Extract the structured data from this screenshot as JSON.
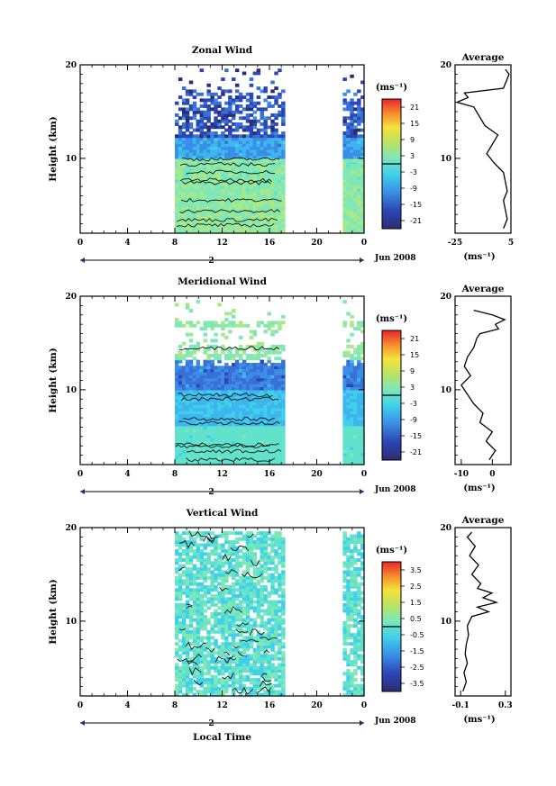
{
  "chart_data": [
    {
      "type": "heatmap",
      "title": "Zonal Wind",
      "ylabel": "Height (km)",
      "xlabel": "",
      "xlim": [
        0,
        24
      ],
      "ylim": [
        2,
        20
      ],
      "xticks": [
        "0",
        "4",
        "8",
        "12",
        "16",
        "20",
        "0"
      ],
      "yticks": [
        "10",
        "20"
      ],
      "date_label": "2",
      "date_suffix": "Jun 2008",
      "colorbar_unit": "(ms⁻¹)",
      "colorbar_ticks": [
        "21",
        "15",
        "9",
        "3",
        "-3",
        "-9",
        "-15",
        "-21"
      ],
      "colorbar_range": [
        -24,
        24
      ],
      "data_spans_hours": [
        [
          8,
          17.2
        ],
        [
          22.2,
          24
        ]
      ],
      "profile": {
        "title": "Average",
        "xlabel": "(ms⁻¹)",
        "xticks": [
          "-25",
          "5"
        ],
        "xlim": [
          -25,
          5
        ],
        "heights": [
          2.5,
          3.5,
          4.5,
          5.5,
          6.5,
          7.5,
          8.5,
          9.5,
          10.5,
          11.5,
          12.5,
          13.5,
          14.5,
          15.5,
          16.0,
          16.5,
          17.0,
          17.5,
          18.0,
          18.5,
          19.0,
          19.5
        ],
        "values": [
          1,
          3,
          2,
          1,
          3,
          2,
          1,
          -4,
          -8,
          -5,
          -2,
          -9,
          -12,
          -15,
          -24,
          -18,
          -20,
          1,
          2,
          3,
          4,
          2
        ]
      }
    },
    {
      "type": "heatmap",
      "title": "Meridional Wind",
      "ylabel": "Height (km)",
      "xlabel": "",
      "xlim": [
        0,
        24
      ],
      "ylim": [
        2,
        20
      ],
      "xticks": [
        "0",
        "4",
        "8",
        "12",
        "16",
        "20",
        "0"
      ],
      "yticks": [
        "10",
        "20"
      ],
      "date_label": "2",
      "date_suffix": "Jun 2008",
      "colorbar_unit": "(ms⁻¹)",
      "colorbar_ticks": [
        "21",
        "15",
        "9",
        "3",
        "-3",
        "-9",
        "-15",
        "-21"
      ],
      "colorbar_range": [
        -24,
        24
      ],
      "data_spans_hours": [
        [
          8,
          17.2
        ],
        [
          22.2,
          24
        ]
      ],
      "profile": {
        "title": "Average",
        "xlabel": "(ms⁻¹)",
        "xticks": [
          "-10",
          "0"
        ],
        "xlim": [
          -12,
          6
        ],
        "heights": [
          2.5,
          3.5,
          4.5,
          5.5,
          6.5,
          7.5,
          8.5,
          9.5,
          10.5,
          11.5,
          12.5,
          13.5,
          14.5,
          15.5,
          16.0,
          16.5,
          17.0,
          17.5,
          18.0,
          18.5
        ],
        "values": [
          -1,
          1,
          -2,
          0,
          -4,
          -3,
          -6,
          -8,
          -10,
          -7,
          -9,
          -8,
          -6,
          -5,
          -4,
          2,
          1,
          4,
          0,
          -6
        ]
      }
    },
    {
      "type": "heatmap",
      "title": "Vertical Wind",
      "ylabel": "Height (km)",
      "xlabel": "Local Time",
      "xlim": [
        0,
        24
      ],
      "ylim": [
        2,
        20
      ],
      "xticks": [
        "0",
        "4",
        "8",
        "12",
        "16",
        "20",
        "0"
      ],
      "yticks": [
        "10",
        "20"
      ],
      "date_label": "2",
      "date_suffix": "Jun 2008",
      "colorbar_unit": "(ms⁻¹)",
      "colorbar_ticks": [
        "3.5",
        "2.5",
        "1.5",
        "0.5",
        "-0.5",
        "-1.5",
        "-2.5",
        "-3.5"
      ],
      "colorbar_range": [
        -4,
        4
      ],
      "data_spans_hours": [
        [
          8,
          17.2
        ],
        [
          22.2,
          24
        ]
      ],
      "profile": {
        "title": "Average",
        "xlabel": "(ms⁻¹)",
        "xticks": [
          "-0.1",
          "0.3"
        ],
        "xlim": [
          -0.15,
          0.35
        ],
        "heights": [
          2.5,
          3.5,
          4.5,
          5.5,
          6.5,
          7.5,
          8.5,
          9.5,
          10.5,
          11.0,
          11.5,
          12.0,
          12.5,
          13.0,
          13.5,
          14.0,
          15.0,
          16.0,
          17.0,
          18.0,
          19.0,
          19.5
        ],
        "values": [
          -0.08,
          -0.05,
          -0.07,
          -0.04,
          -0.06,
          -0.05,
          -0.03,
          -0.04,
          0.0,
          0.15,
          0.05,
          0.22,
          0.1,
          0.18,
          0.05,
          0.08,
          0.0,
          0.06,
          -0.02,
          0.03,
          -0.04,
          0.0
        ]
      }
    }
  ]
}
